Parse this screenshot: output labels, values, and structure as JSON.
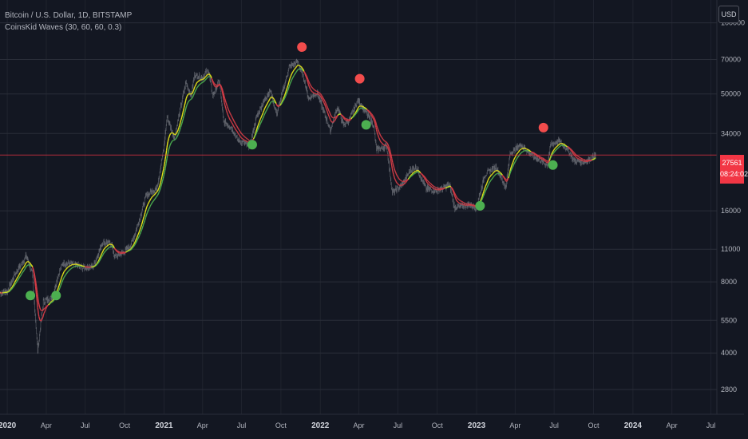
{
  "header": {
    "symbol_line": "Bitcoin / U.S. Dollar, 1D, BITSTAMP",
    "indicator_line": "CoinsKid Waves (30, 60, 60, 0.3)"
  },
  "toolbar": {
    "currency_label": "USD"
  },
  "last_price": {
    "value": "27561",
    "countdown": "08:24:02"
  },
  "colors": {
    "background": "#131722",
    "grid": "#2a2e39",
    "fast_wave_up": "#e6e619",
    "slow_wave_up": "#4caf50",
    "wave_down": "#d23c46",
    "buy_signal": "#4caf50",
    "sell_signal": "#f24c4c",
    "candles": "#7d8087",
    "price_line": "#f23645"
  },
  "chart_data": {
    "type": "line",
    "title": "",
    "xlabel": "",
    "ylabel": "",
    "y_scale": "log",
    "ylim": [
      2200,
      125000
    ],
    "xlim": [
      "2019-12-15",
      "2024-07-15"
    ],
    "x_ticks": [
      {
        "date": "2020-01-01",
        "label": "2020",
        "bold": true
      },
      {
        "date": "2020-04-01",
        "label": "Apr"
      },
      {
        "date": "2020-07-01",
        "label": "Jul"
      },
      {
        "date": "2020-10-01",
        "label": "Oct"
      },
      {
        "date": "2021-01-01",
        "label": "2021",
        "bold": true
      },
      {
        "date": "2021-04-01",
        "label": "Apr"
      },
      {
        "date": "2021-07-01",
        "label": "Jul"
      },
      {
        "date": "2021-10-01",
        "label": "Oct"
      },
      {
        "date": "2022-01-01",
        "label": "2022",
        "bold": true
      },
      {
        "date": "2022-04-01",
        "label": "Apr"
      },
      {
        "date": "2022-07-01",
        "label": "Jul"
      },
      {
        "date": "2022-10-01",
        "label": "Oct"
      },
      {
        "date": "2023-01-01",
        "label": "2023",
        "bold": true
      },
      {
        "date": "2023-04-01",
        "label": "Apr"
      },
      {
        "date": "2023-07-01",
        "label": "Jul"
      },
      {
        "date": "2023-10-01",
        "label": "Oct"
      },
      {
        "date": "2024-01-01",
        "label": "2024",
        "bold": true
      },
      {
        "date": "2024-04-01",
        "label": "Apr"
      },
      {
        "date": "2024-07-01",
        "label": "Jul"
      }
    ],
    "y_ticks": [
      {
        "value": 100000,
        "label": "100000"
      },
      {
        "value": 70000,
        "label": "70000"
      },
      {
        "value": 50000,
        "label": "50000"
      },
      {
        "value": 34000,
        "label": "34000"
      },
      {
        "value": 16000,
        "label": "16000"
      },
      {
        "value": 11000,
        "label": "11000"
      },
      {
        "value": 8000,
        "label": "8000"
      },
      {
        "value": 5500,
        "label": "5500"
      },
      {
        "value": 4000,
        "label": "4000"
      },
      {
        "value": 2800,
        "label": "2800"
      }
    ],
    "price_line_value": 27561,
    "price_path": [
      [
        "2019-12-15",
        7200
      ],
      [
        "2020-01-01",
        7300
      ],
      [
        "2020-01-20",
        8700
      ],
      [
        "2020-02-14",
        10300
      ],
      [
        "2020-02-28",
        8700
      ],
      [
        "2020-03-12",
        4100
      ],
      [
        "2020-03-25",
        6600
      ],
      [
        "2020-04-15",
        6900
      ],
      [
        "2020-04-30",
        8700
      ],
      [
        "2020-05-10",
        9600
      ],
      [
        "2020-06-01",
        9500
      ],
      [
        "2020-06-25",
        9200
      ],
      [
        "2020-07-20",
        9300
      ],
      [
        "2020-08-10",
        11800
      ],
      [
        "2020-08-31",
        11600
      ],
      [
        "2020-09-08",
        10200
      ],
      [
        "2020-09-30",
        10700
      ],
      [
        "2020-10-15",
        11400
      ],
      [
        "2020-10-31",
        13800
      ],
      [
        "2020-11-20",
        18500
      ],
      [
        "2020-12-15",
        20000
      ],
      [
        "2020-12-31",
        29000
      ],
      [
        "2021-01-08",
        40000
      ],
      [
        "2021-01-25",
        32500
      ],
      [
        "2021-02-10",
        45000
      ],
      [
        "2021-02-21",
        56000
      ],
      [
        "2021-03-05",
        49000
      ],
      [
        "2021-03-13",
        60000
      ],
      [
        "2021-03-31",
        58500
      ],
      [
        "2021-04-14",
        63500
      ],
      [
        "2021-04-25",
        49000
      ],
      [
        "2021-05-10",
        57000
      ],
      [
        "2021-05-20",
        38000
      ],
      [
        "2021-06-05",
        36500
      ],
      [
        "2021-06-22",
        32000
      ],
      [
        "2021-07-20",
        30000
      ],
      [
        "2021-08-05",
        40000
      ],
      [
        "2021-08-25",
        48000
      ],
      [
        "2021-09-06",
        51500
      ],
      [
        "2021-09-21",
        41000
      ],
      [
        "2021-10-05",
        51000
      ],
      [
        "2021-10-20",
        65000
      ],
      [
        "2021-11-09",
        68500
      ],
      [
        "2021-11-25",
        57000
      ],
      [
        "2021-12-04",
        48000
      ],
      [
        "2021-12-25",
        50500
      ],
      [
        "2022-01-10",
        41500
      ],
      [
        "2022-01-24",
        35000
      ],
      [
        "2022-02-10",
        44000
      ],
      [
        "2022-02-24",
        37000
      ],
      [
        "2022-03-10",
        39000
      ],
      [
        "2022-03-30",
        47000
      ],
      [
        "2022-04-20",
        41000
      ],
      [
        "2022-05-05",
        37000
      ],
      [
        "2022-05-12",
        29000
      ],
      [
        "2022-06-05",
        30000
      ],
      [
        "2022-06-18",
        19000
      ],
      [
        "2022-07-10",
        20500
      ],
      [
        "2022-07-30",
        23800
      ],
      [
        "2022-08-14",
        24400
      ],
      [
        "2022-09-05",
        19800
      ],
      [
        "2022-10-01",
        19500
      ],
      [
        "2022-10-30",
        20600
      ],
      [
        "2022-11-10",
        16500
      ],
      [
        "2022-12-15",
        17000
      ],
      [
        "2022-12-31",
        16500
      ],
      [
        "2023-01-20",
        22800
      ],
      [
        "2023-02-15",
        24500
      ],
      [
        "2023-03-10",
        20000
      ],
      [
        "2023-03-20",
        28000
      ],
      [
        "2023-04-14",
        30500
      ],
      [
        "2023-05-10",
        27500
      ],
      [
        "2023-06-15",
        25000
      ],
      [
        "2023-06-23",
        30600
      ],
      [
        "2023-07-13",
        31500
      ],
      [
        "2023-08-01",
        29200
      ],
      [
        "2023-08-17",
        26000
      ],
      [
        "2023-09-10",
        25800
      ],
      [
        "2023-09-30",
        27000
      ],
      [
        "2023-10-06",
        27561
      ]
    ],
    "series": [
      {
        "role": "fast",
        "smoothing": 30,
        "lag": 20
      },
      {
        "role": "slow",
        "smoothing": 60,
        "lag": 32
      }
    ],
    "markers": [
      {
        "date": "2020-02-24",
        "value": 7000,
        "type": "buy"
      },
      {
        "date": "2020-04-24",
        "value": 7000,
        "type": "buy"
      },
      {
        "date": "2021-07-26",
        "value": 30500,
        "type": "buy"
      },
      {
        "date": "2021-11-19",
        "value": 79000,
        "type": "sell"
      },
      {
        "date": "2022-04-03",
        "value": 58000,
        "type": "sell"
      },
      {
        "date": "2022-04-18",
        "value": 37000,
        "type": "buy"
      },
      {
        "date": "2023-01-09",
        "value": 16800,
        "type": "buy"
      },
      {
        "date": "2023-06-06",
        "value": 36000,
        "type": "sell"
      },
      {
        "date": "2023-06-28",
        "value": 25000,
        "type": "buy"
      }
    ]
  }
}
